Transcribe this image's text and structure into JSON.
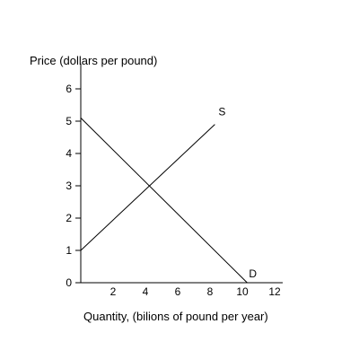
{
  "chart_data": {
    "type": "line",
    "title": "",
    "ylabel": "Price (dollars per pound)",
    "xlabel": "Quantity, (bilions of pound per year)",
    "xlim": [
      0,
      12
    ],
    "ylim": [
      0,
      6
    ],
    "xticks": [
      "2",
      "4",
      "6",
      "8",
      "10",
      "12"
    ],
    "yticks": [
      "0",
      "1",
      "2",
      "3",
      "4",
      "5",
      "6"
    ],
    "grid": false,
    "series": [
      {
        "name": "S",
        "x": [
          0,
          8.3
        ],
        "y": [
          1,
          4.9
        ]
      },
      {
        "name": "D",
        "x": [
          0,
          10.3
        ],
        "y": [
          5.1,
          0
        ]
      }
    ]
  }
}
